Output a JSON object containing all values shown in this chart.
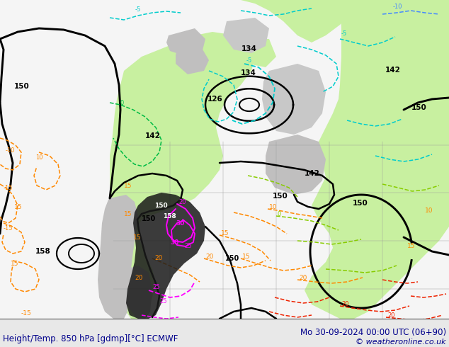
{
  "title_left": "Height/Temp. 850 hPa [gdmp][°C] ECMWF",
  "title_right": "Mo 30-09-2024 00:00 UTC (06+90)",
  "copyright": "© weatheronline.co.uk",
  "fig_width": 6.34,
  "fig_height": 4.9,
  "dpi": 100,
  "bg_color": "#e8e8e8",
  "title_fontsize": 8.5,
  "copyright_fontsize": 8,
  "title_color": "#00008B",
  "copyright_color": "#00008B",
  "cyan_color": "#00CCCC",
  "blue_color": "#4488FF",
  "green_color": "#00BB44",
  "lime_color": "#88CC00",
  "orange_color": "#FF8800",
  "red_color": "#EE2200",
  "magenta_color": "#FF00FF",
  "black_contour_lw": 1.8,
  "temp_contour_lw": 1.1
}
